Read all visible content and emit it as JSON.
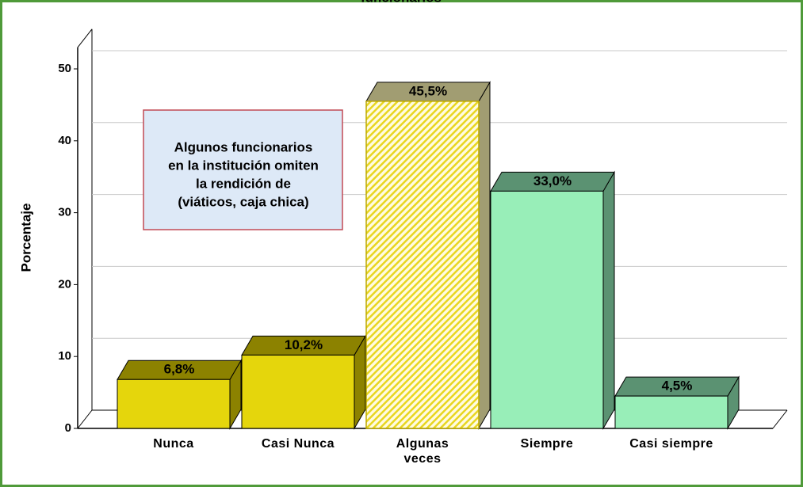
{
  "chart_data": {
    "type": "bar3d",
    "title": "funcionarios",
    "ylabel": "Porcentaje",
    "categories": [
      "Nunca",
      "Casi Nunca",
      "Algunas\nveces",
      "Siempre",
      "Casi siempre"
    ],
    "values": [
      6.8,
      10.2,
      45.5,
      33.0,
      4.5
    ],
    "value_labels": [
      "6,8%",
      "10,2%",
      "45,5%",
      "33,0%",
      "4,5%"
    ],
    "colors": [
      "#e5d60c",
      "#e5d60c",
      "#f2e54a",
      "#98eeb8",
      "#98eeb8"
    ],
    "top_colors": [
      "#8c8200",
      "#8c8200",
      "#a19d72",
      "#5b9272",
      "#5b9272"
    ],
    "hatched": [
      false,
      false,
      true,
      false,
      false
    ],
    "ylim": [
      0,
      53
    ],
    "yticks": [
      0,
      10,
      20,
      30,
      40,
      50
    ],
    "grid": true,
    "annotation": [
      "Algunos funcionarios",
      "en la institución omiten",
      "la rendición de",
      "(viáticos, caja chica)"
    ]
  }
}
